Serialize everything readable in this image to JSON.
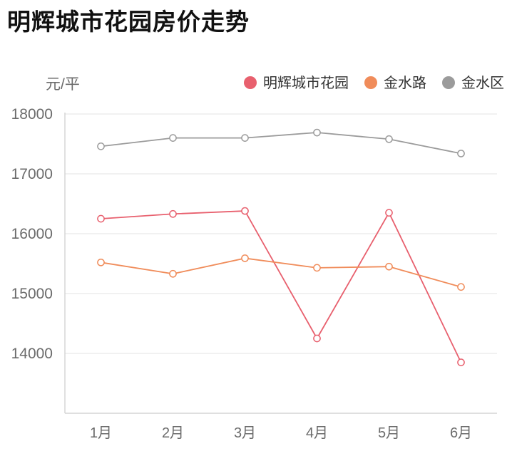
{
  "title": "明辉城市花园房价走势",
  "chart_data": {
    "type": "line",
    "title": "明辉城市花园房价走势",
    "ylabel": "元/平",
    "xlabel": "",
    "categories": [
      "1月",
      "2月",
      "3月",
      "4月",
      "5月",
      "6月"
    ],
    "ylim": [
      13000,
      18000
    ],
    "yticks": [
      14000,
      15000,
      16000,
      17000,
      18000
    ],
    "grid": true,
    "legend_position": "top-right",
    "series": [
      {
        "name": "明辉城市花园",
        "color": "#e8606e",
        "values": [
          16250,
          16330,
          16380,
          14250,
          16350,
          13850
        ]
      },
      {
        "name": "金水路",
        "color": "#f08c5a",
        "values": [
          15520,
          15330,
          15590,
          15430,
          15450,
          15110
        ]
      },
      {
        "name": "金水区",
        "color": "#9b9b9b",
        "values": [
          17460,
          17600,
          17600,
          17690,
          17580,
          17340
        ]
      }
    ]
  }
}
